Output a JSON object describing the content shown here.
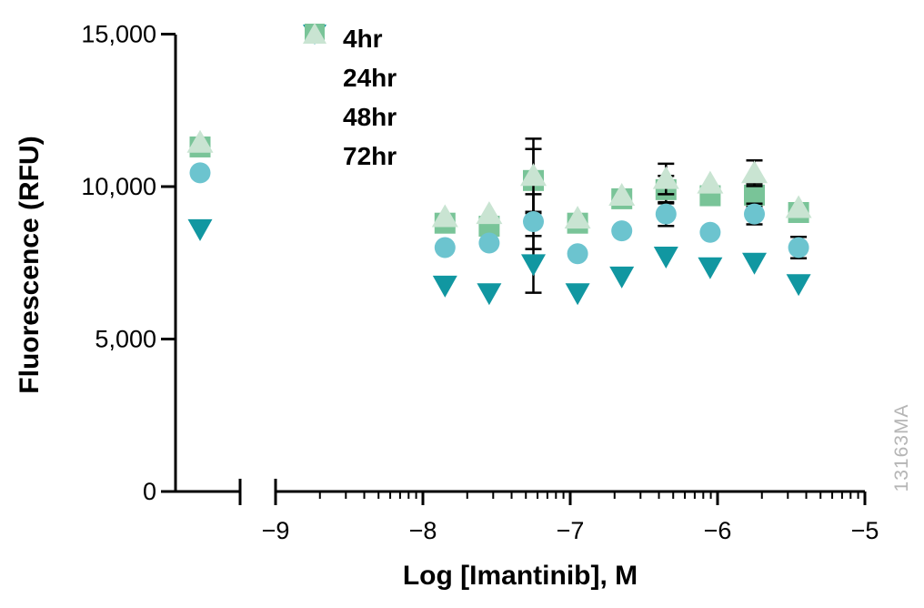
{
  "figure": {
    "watermark": "13163MA",
    "background_color": "#ffffff",
    "axis_color": "#000000",
    "watermark_color": "#b5b5b5"
  },
  "chart_data": {
    "type": "scatter",
    "title": "",
    "xlabel": "Log [Imantinib], M",
    "ylabel": "Fluorescence (RFU)",
    "x_axis": {
      "scale": "log10",
      "tick_values": [
        -9,
        -8,
        -7,
        -6,
        -5
      ],
      "tick_labels": [
        "−9",
        "−8",
        "−7",
        "−6",
        "−5"
      ],
      "range": [
        -9,
        -5
      ],
      "broken_axis": true,
      "minor_ticks": "log-decade"
    },
    "y_axis": {
      "tick_values": [
        0,
        5000,
        10000,
        15000
      ],
      "tick_labels": [
        "0",
        "5,000",
        "10,000",
        "15,000"
      ],
      "range": [
        0,
        15000
      ],
      "grid": false
    },
    "x": [
      -7.85,
      -7.55,
      -7.25,
      -6.95,
      -6.65,
      -6.35,
      -6.05,
      -5.75,
      -5.45
    ],
    "series": [
      {
        "name": "4hr",
        "marker": "triangle-down",
        "color": "#1197a1",
        "control_value": 8600,
        "values": [
          6750,
          6500,
          7450,
          6500,
          7050,
          7700,
          7350,
          7500,
          6800
        ],
        "errors": [
          0,
          0,
          930,
          0,
          0,
          0,
          0,
          0,
          0
        ]
      },
      {
        "name": "24hr",
        "marker": "circle",
        "color": "#6cc4cf",
        "control_value": 10450,
        "values": [
          8000,
          8150,
          8850,
          7800,
          8550,
          9100,
          8500,
          9100,
          8000
        ],
        "errors": [
          0,
          0,
          900,
          0,
          0,
          390,
          0,
          340,
          350
        ]
      },
      {
        "name": "48hr",
        "marker": "square",
        "color": "#79c498",
        "control_value": 11300,
        "values": [
          8800,
          8700,
          10200,
          8800,
          9600,
          9900,
          9700,
          9720,
          9150
        ],
        "errors": [
          0,
          0,
          1030,
          0,
          0,
          450,
          0,
          360,
          0
        ]
      },
      {
        "name": "72hr",
        "marker": "triangle-up",
        "color": "#c9e4d2",
        "control_value": 11440,
        "values": [
          9000,
          9100,
          10350,
          8950,
          9700,
          10250,
          10100,
          10440,
          9300
        ],
        "errors": [
          0,
          0,
          1220,
          0,
          0,
          500,
          0,
          420,
          0
        ]
      }
    ],
    "legend": {
      "position": "top-left-inside",
      "labels": [
        "4hr",
        "24hr",
        "48hr",
        "72hr"
      ]
    }
  }
}
